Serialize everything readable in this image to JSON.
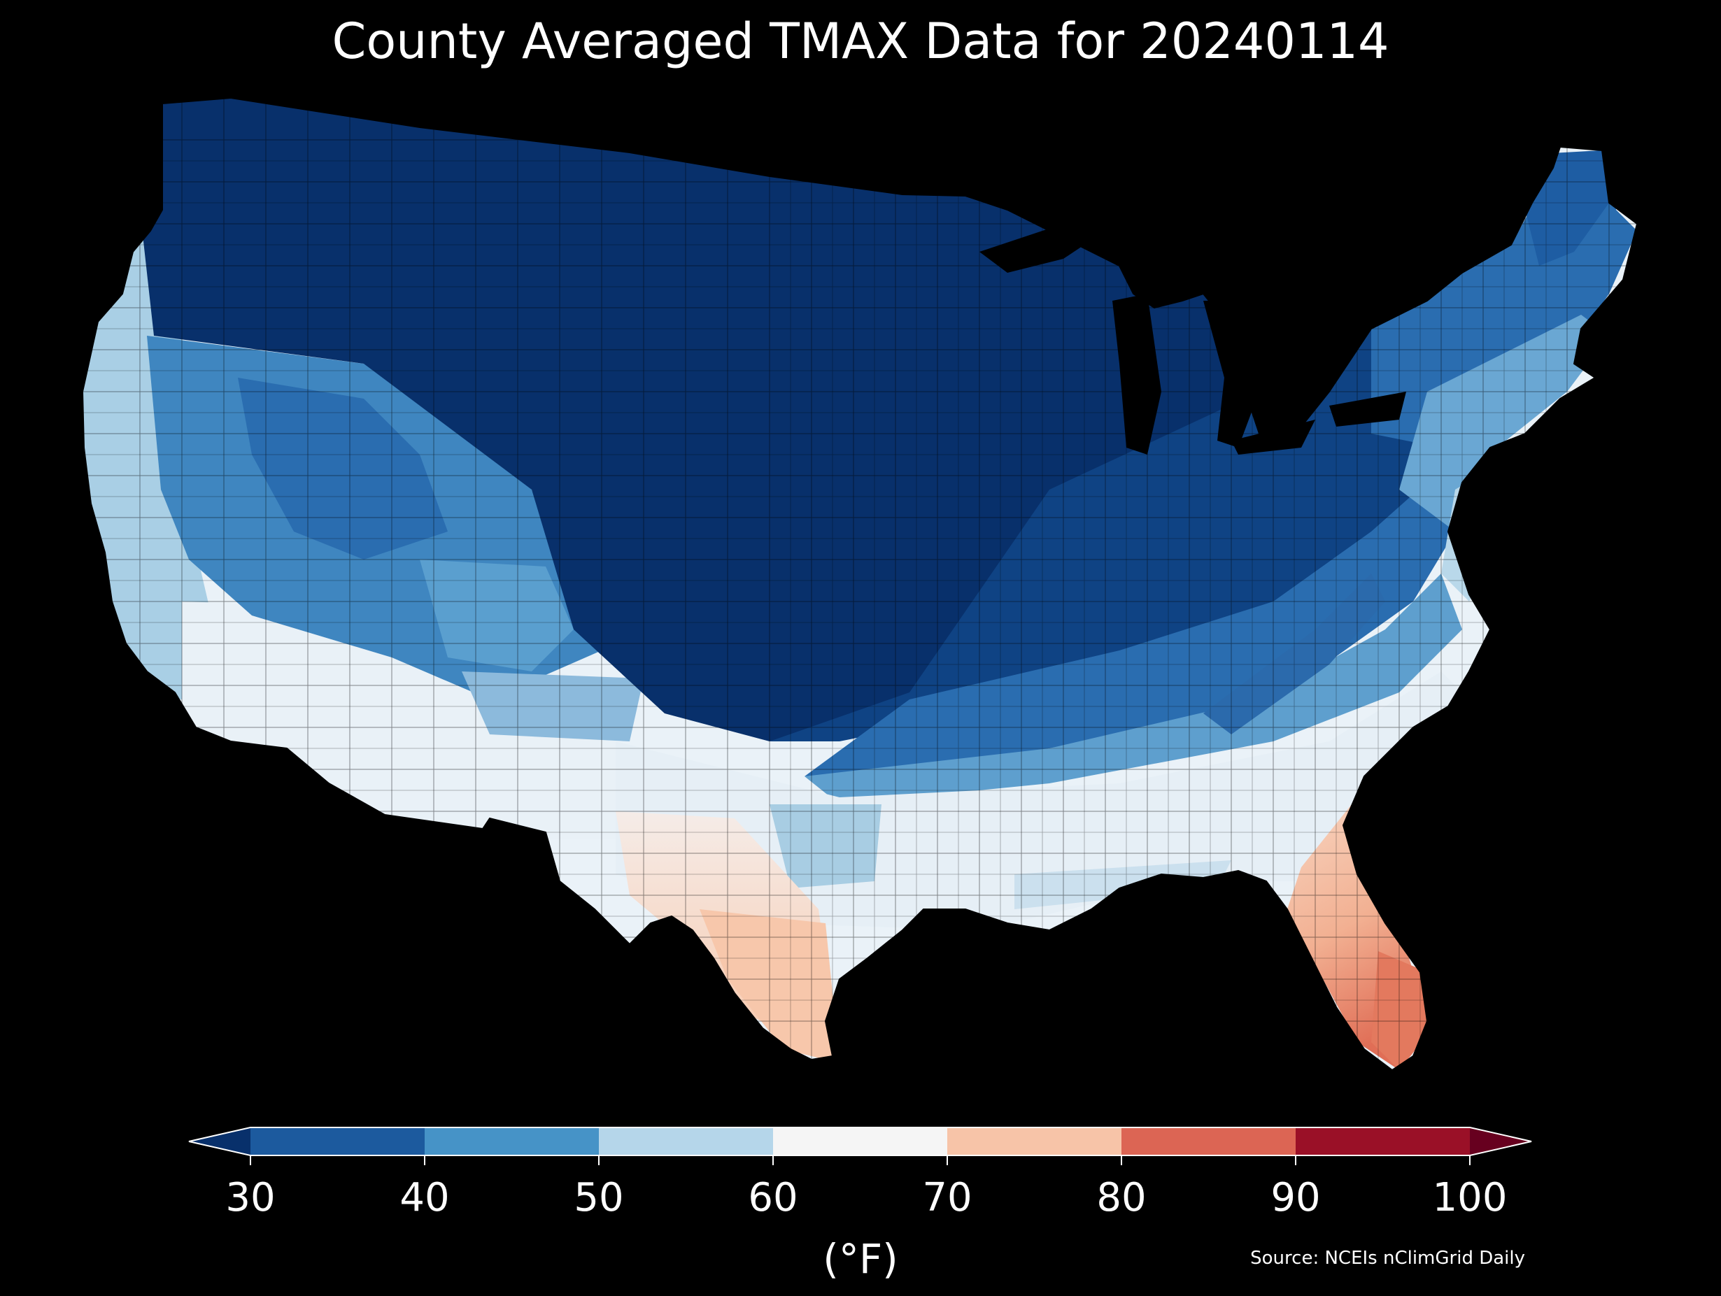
{
  "title": "County Averaged TMAX Data for 20240114",
  "colorbar": {
    "ticks": [
      "30",
      "40",
      "50",
      "60",
      "70",
      "80",
      "90",
      "100"
    ],
    "unit_label": "(°F)",
    "bins": [
      {
        "range": "<30",
        "color": "#08306b"
      },
      {
        "range": "30-40",
        "color": "#1c5a9e"
      },
      {
        "range": "40-50",
        "color": "#4693c7"
      },
      {
        "range": "50-60",
        "color": "#b5d6ea"
      },
      {
        "range": "60-70",
        "color": "#f5f5f5"
      },
      {
        "range": "70-80",
        "color": "#f7c4a8"
      },
      {
        "range": "80-90",
        "color": "#dc6554"
      },
      {
        "range": "90-100",
        "color": "#9a1027"
      },
      {
        "range": ">100",
        "color": "#67001f"
      }
    ]
  },
  "source": "Source: NCEIs nClimGrid Daily",
  "map": {
    "region": "Contiguous United States",
    "variable": "TMAX",
    "units": "°F",
    "regional_values": [
      {
        "region": "Northern Plains / Upper Midwest",
        "color": "#08306b"
      },
      {
        "region": "Great Lakes / Ohio Valley north",
        "color": "#0b3a78"
      },
      {
        "region": "Interior West / Great Basin",
        "color": "#3f86c0"
      },
      {
        "region": "Pacific Coast",
        "color": "#a9cfe5"
      },
      {
        "region": "Southern California / Arizona",
        "color": "#e9f1f7"
      },
      {
        "region": "Southern Plains / Southeast",
        "color": "#eaf2f8"
      },
      {
        "region": "South Texas",
        "color": "#f8cfb6"
      },
      {
        "region": "Florida Peninsula",
        "color": "#f2b092"
      },
      {
        "region": "South Florida",
        "color": "#e67f63"
      },
      {
        "region": "New England interior",
        "color": "#2a6db0"
      },
      {
        "region": "Mid-Atlantic coast",
        "color": "#b9d8ea"
      }
    ]
  }
}
